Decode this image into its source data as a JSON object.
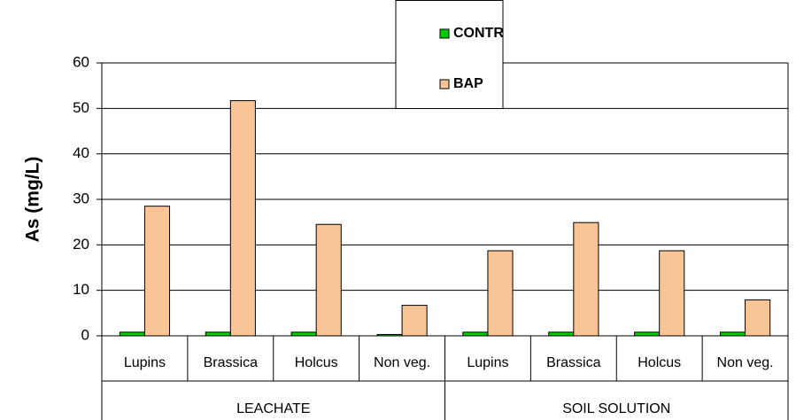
{
  "chart_data": {
    "type": "bar",
    "y_label": "As (mg/L)",
    "groups": [
      {
        "name": "LEACHATE",
        "categories": [
          "Lupins",
          "Brassica",
          "Holcus",
          "Non veg."
        ]
      },
      {
        "name": "SOIL SOLUTION",
        "categories": [
          "Lupins",
          "Brassica",
          "Holcus",
          "Non veg."
        ]
      }
    ],
    "series": [
      {
        "name": "CONTR",
        "color": "#00cc00",
        "values": [
          0.8,
          0.8,
          0.8,
          0.3,
          0.8,
          0.8,
          0.8,
          0.8
        ]
      },
      {
        "name": "BAP",
        "color": "#fac596",
        "values": [
          28.5,
          51.7,
          24.5,
          6.7,
          18.7,
          24.9,
          18.7,
          7.9
        ]
      }
    ],
    "ylim": [
      0,
      60
    ],
    "yticks": [
      0,
      10,
      20,
      30,
      40,
      50,
      60
    ],
    "grid": true,
    "legend": "top"
  }
}
